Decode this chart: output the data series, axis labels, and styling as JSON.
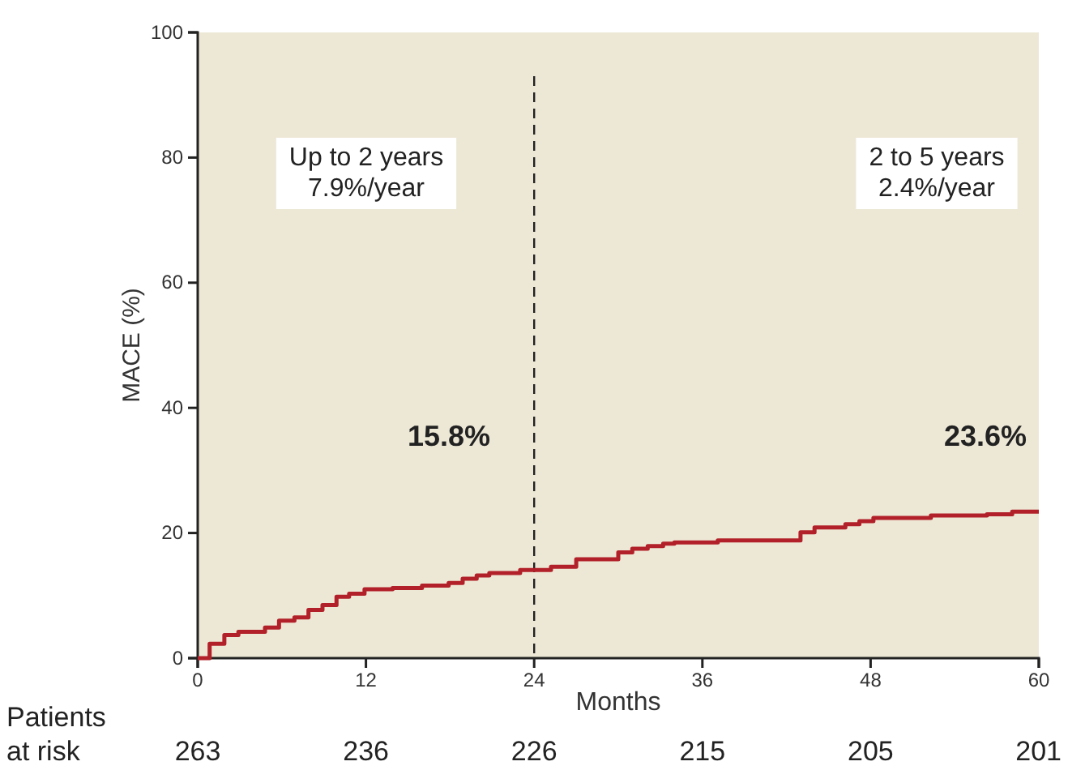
{
  "chart_data": {
    "type": "step",
    "xlabel": "Months",
    "ylabel": "MACE (%)",
    "xlim": [
      0,
      60
    ],
    "xticks": [
      0,
      12,
      24,
      36,
      48,
      60
    ],
    "ylim": [
      0,
      100
    ],
    "yticks": [
      0,
      20,
      40,
      60,
      80,
      100
    ],
    "grid": false,
    "marker": "none",
    "line_style": "solid",
    "series": [
      {
        "color": "#b22029",
        "x": [
          0,
          0.85,
          1.9,
          2.9,
          4.8,
          5.8,
          6.9,
          7.9,
          8.9,
          9.9,
          10.8,
          11.9,
          13.9,
          16.0,
          17.9,
          18.9,
          19.9,
          20.8,
          23.0,
          25.2,
          27.0,
          30.0,
          31.0,
          32.1,
          33.2,
          34.0,
          37.1,
          43.0,
          44.0,
          46.2,
          47.2,
          48.2,
          52.3,
          56.3,
          58.1,
          60
        ],
        "values": [
          0,
          2.3,
          3.7,
          4.2,
          4.9,
          6.0,
          6.5,
          7.7,
          8.5,
          9.8,
          10.3,
          11.0,
          11.2,
          11.6,
          12.0,
          12.7,
          13.2,
          13.6,
          14.1,
          14.6,
          15.8,
          16.9,
          17.5,
          17.9,
          18.3,
          18.5,
          18.8,
          20.1,
          20.9,
          21.4,
          21.9,
          22.4,
          22.8,
          23.0,
          23.4,
          23.4
        ]
      }
    ],
    "ref_lines": [
      {
        "axis": "x",
        "value": 24,
        "line_style": "dashed",
        "color": "#222222"
      }
    ],
    "annotations": [
      "Up to 2 years\n7.9%/year",
      "2 to 5 years\n2.4%/year",
      "15.8%",
      "23.6%",
      "Patients\nat risk",
      "263",
      "236",
      "226",
      "215",
      "205",
      "201"
    ]
  }
}
